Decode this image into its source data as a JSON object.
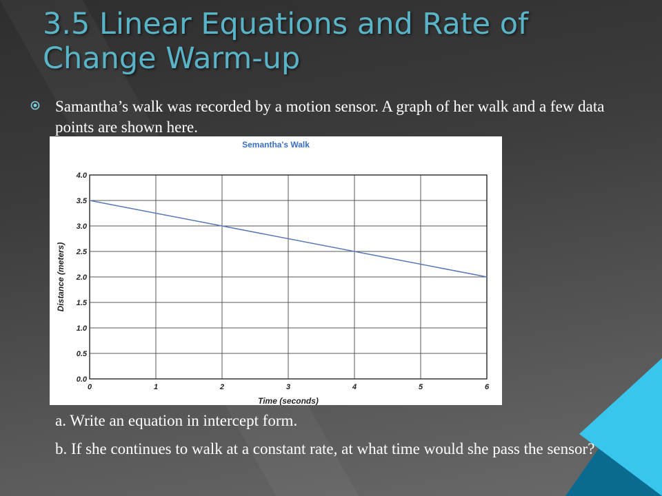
{
  "slide": {
    "title": "3.5 Linear Equations and Rate of Change Warm-up",
    "bullet_icon": "circle-dot-bullet-icon",
    "paragraph": "Samantha’s walk was recorded by a motion sensor. A graph of her walk and a few data points are shown here.",
    "question_a": "a. Write an equation in intercept form.",
    "question_b": "b. If she continues to walk at  a constant rate, at what time would she pass the sensor?"
  },
  "colors": {
    "title": "#5ab4c8",
    "accent_light": "#35c7ee",
    "accent_dark": "#0b6f95",
    "chart_title": "#3a6fc4",
    "line": "#5577b9"
  },
  "chart_data": {
    "type": "line",
    "title": "Semantha's Walk",
    "xlabel": "Time (seconds)",
    "ylabel": "Distance (meters)",
    "xlim": [
      0,
      6
    ],
    "ylim": [
      0,
      4
    ],
    "x_ticks": [
      "0",
      "1",
      "2",
      "3",
      "4",
      "5",
      "6"
    ],
    "y_ticks": [
      "0.0",
      "0.5",
      "1.0",
      "1.5",
      "2.0",
      "2.5",
      "3.0",
      "3.5",
      "4.0"
    ],
    "grid": true,
    "series": [
      {
        "x": [
          0,
          2,
          4,
          6
        ],
        "y": [
          3.5,
          3.0,
          2.5,
          2.0
        ]
      }
    ]
  }
}
